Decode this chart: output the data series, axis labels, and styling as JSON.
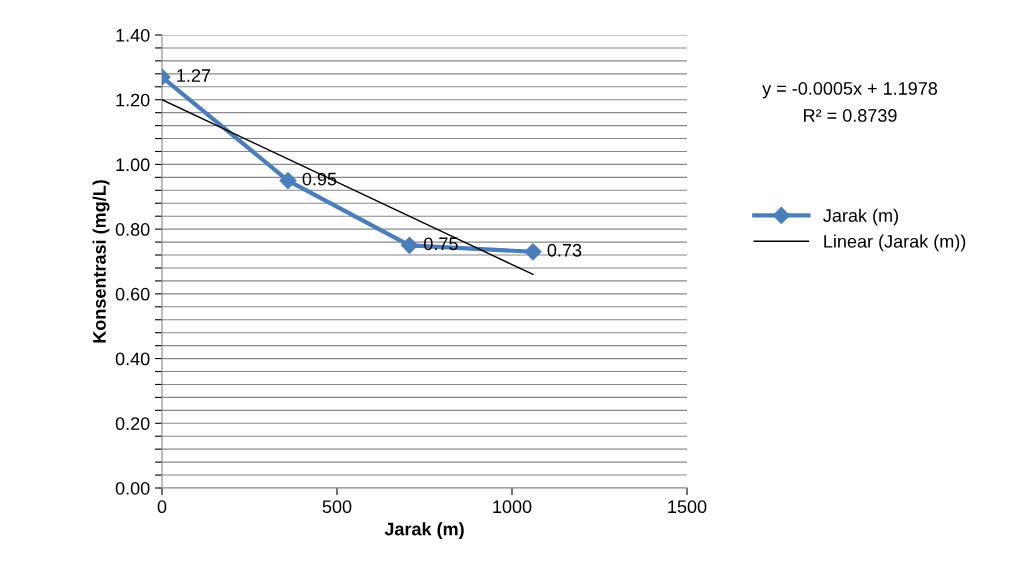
{
  "chart_data": {
    "type": "line",
    "xlabel": "Jarak (m)",
    "ylabel": "Konsentrasi (mg/L)",
    "xlim": [
      0,
      1500
    ],
    "xticks": [
      0,
      500,
      1000,
      1500
    ],
    "ylim": [
      0,
      1.4
    ],
    "yticks": [
      {
        "value": 0,
        "label": "0.00"
      },
      {
        "value": 0.04,
        "label": null
      },
      {
        "value": 0.08,
        "label": null
      },
      {
        "value": 0.12,
        "label": null
      },
      {
        "value": 0.16,
        "label": null
      },
      {
        "value": 0.2,
        "label": "0.20"
      },
      {
        "value": 0.24,
        "label": null
      },
      {
        "value": 0.28,
        "label": null
      },
      {
        "value": 0.32,
        "label": null
      },
      {
        "value": 0.36,
        "label": null
      },
      {
        "value": 0.4,
        "label": "0.40"
      },
      {
        "value": 0.44,
        "label": null
      },
      {
        "value": 0.48,
        "label": null
      },
      {
        "value": 0.52,
        "label": null
      },
      {
        "value": 0.56,
        "label": null
      },
      {
        "value": 0.6,
        "label": "0.60"
      },
      {
        "value": 0.64,
        "label": null
      },
      {
        "value": 0.68,
        "label": null
      },
      {
        "value": 0.72,
        "label": null
      },
      {
        "value": 0.76,
        "label": null
      },
      {
        "value": 0.8,
        "label": "0.80"
      },
      {
        "value": 0.84,
        "label": null
      },
      {
        "value": 0.88,
        "label": null
      },
      {
        "value": 0.92,
        "label": null
      },
      {
        "value": 0.96,
        "label": null
      },
      {
        "value": 1.0,
        "label": "1.00"
      },
      {
        "value": 1.04,
        "label": null
      },
      {
        "value": 1.08,
        "label": null
      },
      {
        "value": 1.12,
        "label": null
      },
      {
        "value": 1.16,
        "label": null
      },
      {
        "value": 1.2,
        "label": "1.20"
      },
      {
        "value": 1.24,
        "label": null
      },
      {
        "value": 1.28,
        "label": null
      },
      {
        "value": 1.32,
        "label": null
      },
      {
        "value": 1.36,
        "label": null
      },
      {
        "value": 1.4,
        "label": "1.40"
      }
    ],
    "grid": "y",
    "legend": "right",
    "series": [
      {
        "name": "Jarak (m)",
        "color": "#4a7ebb",
        "marker": "diamond",
        "line_style": "solid",
        "x": [
          0,
          360,
          707,
          1060
        ],
        "values": [
          1.27,
          0.95,
          0.75,
          0.73
        ],
        "value_labels": [
          "1.27",
          "0.95",
          "0.75",
          "0.73"
        ]
      },
      {
        "name": "Linear (Jarak (m))",
        "color": "#000000",
        "marker": "none",
        "line_style": "solid",
        "x": [
          0,
          1060
        ],
        "values": [
          1.2,
          0.66
        ]
      }
    ],
    "annotations": [
      "y = -0.0005x + 1.1978",
      "R² = 0.8739"
    ]
  }
}
